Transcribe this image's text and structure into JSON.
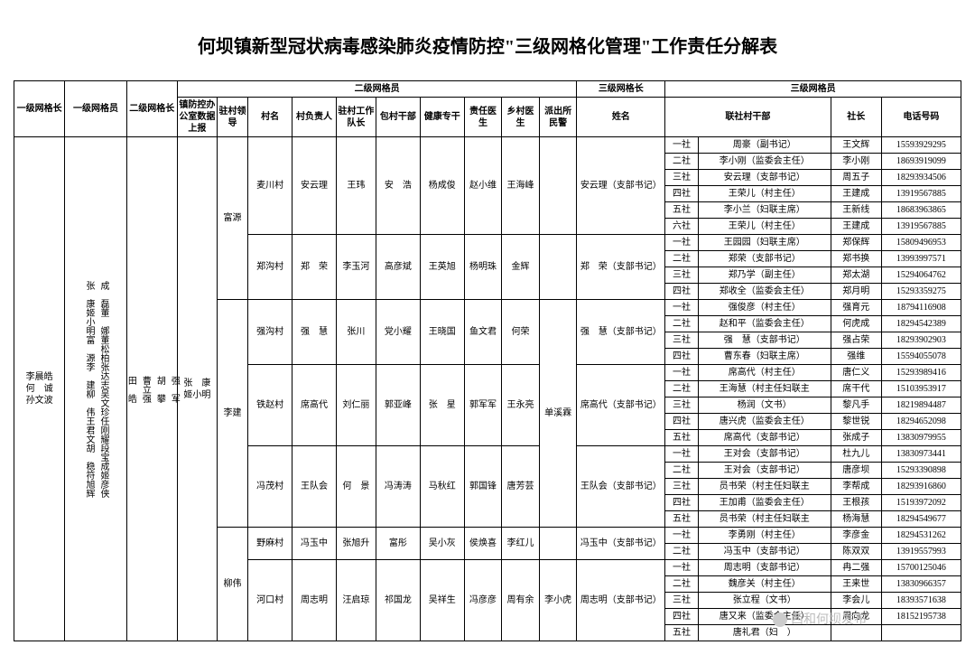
{
  "title": "何坝镇新型冠状病毒感染肺炎疫情防控\"三级网格化管理\"工作责任分解表",
  "headers": {
    "h1": "一级网格长",
    "h2": "一级网格员",
    "h3": "二级网格长",
    "h4": "二级网格员",
    "h5": "三级网格长",
    "h6": "三级网格员",
    "s_office": "镇防控办公室数据上报",
    "s_zc": "驻村领导",
    "s_cm": "村名",
    "s_cfz": "村负责人",
    "s_zcgz": "驻村工作队长",
    "s_bcgb": "包村干部",
    "s_jkzs": "健康专干",
    "s_zrys": "责任医生",
    "s_xcys": "乡村医生",
    "s_pcsmj": "派出所民警",
    "s_xm": "姓名",
    "s_lscgb": "联社村干部",
    "s_sz": "社长",
    "s_dh": "电话号码"
  },
  "lvl1_leader": "李晨皓\n何　诚\n孙文波",
  "lvl1_members": [
    "张　康",
    "姬小明",
    "富　源",
    "李　建",
    "柳　伟",
    "王君文",
    "胡　稳",
    "符旭辉",
    "成　磊",
    "董　娜",
    "董松柏",
    "张达志",
    "吴文珍",
    "任刚耀",
    "段宝成",
    "姬彦侠"
  ],
  "lvl2_leader": [
    "田　皓",
    "曹立强",
    "胡　攀",
    "强　军"
  ],
  "lvl2_team": "张　康\n姬小明",
  "groups": [
    {
      "zc": "富源",
      "villages": [
        {
          "cm": "麦川村",
          "cfz": "安云理",
          "zcgz": "王玮",
          "bcgb": "安　浩",
          "jkzs": "杨成俊",
          "zrys": "赵小维",
          "xcys": "王海峰",
          "pcsmj": "",
          "xm": "安云理（支部书记）",
          "rows": [
            {
              "s": "一社",
              "g": "周豪（副书记）",
              "z": "王文辉",
              "p": "15593929295"
            },
            {
              "s": "二社",
              "g": "李小刚（监委会主任）",
              "z": "李小刚",
              "p": "18693919099"
            },
            {
              "s": "三社",
              "g": "安云理（支部书记）",
              "z": "周五子",
              "p": "18293934506"
            },
            {
              "s": "四社",
              "g": "王荣儿（村主任）",
              "z": "王建成",
              "p": "13919567885"
            },
            {
              "s": "五社",
              "g": "李小兰（妇联主席）",
              "z": "王新线",
              "p": "18683963865"
            },
            {
              "s": "六社",
              "g": "王荣儿（村主任）",
              "z": "王建成",
              "p": "13919567885"
            }
          ]
        },
        {
          "cm": "郑沟村",
          "cfz": "郑　荣",
          "zcgz": "李玉河",
          "bcgb": "高彦斌",
          "jkzs": "王英旭",
          "zrys": "杨明珠",
          "xcys": "金辉",
          "pcsmj": "",
          "xm": "郑　荣（支部书记）",
          "rows": [
            {
              "s": "一社",
              "g": "王园园（妇联主席）",
              "z": "郑保辉",
              "p": "15809496953"
            },
            {
              "s": "二社",
              "g": "郑荣（支部书记）",
              "z": "郑书换",
              "p": "13993997571"
            },
            {
              "s": "三社",
              "g": "郑乃学（副主任）",
              "z": "郑太湖",
              "p": "15294064762"
            },
            {
              "s": "四社",
              "g": "郑收全（监委会主任）",
              "z": "郑月明",
              "p": "15293359275"
            }
          ]
        }
      ]
    },
    {
      "zc": "李建",
      "pcsmj": "单溪霖",
      "villages": [
        {
          "cm": "强沟村",
          "cfz": "强　慧",
          "zcgz": "张川",
          "bcgb": "党小耀",
          "jkzs": "王晓国",
          "zrys": "鱼文君",
          "xcys": "何荣",
          "xm": "强　慧（支部书记）",
          "rows": [
            {
              "s": "一社",
              "g": "强俊彦（村主任）",
              "z": "强育元",
              "p": "18794116908"
            },
            {
              "s": "二社",
              "g": "赵和平（监委会主任）",
              "z": "何虎成",
              "p": "18294542389"
            },
            {
              "s": "三社",
              "g": "强　慧（支部书记）",
              "z": "强占荣",
              "p": "18293902903"
            },
            {
              "s": "四社",
              "g": "曹东春（妇联主席）",
              "z": "强维",
              "p": "15594055078"
            }
          ]
        },
        {
          "cm": "铁赵村",
          "cfz": "席高代",
          "zcgz": "刘仁丽",
          "bcgb": "郭亚峰",
          "jkzs": "张　星",
          "zrys": "郭军军",
          "xcys": "王永亮",
          "xm": "席高代（支部书记）",
          "rows": [
            {
              "s": "一社",
              "g": "席高代（村主任）",
              "z": "唐仁义",
              "p": "15293989416"
            },
            {
              "s": "二社",
              "g": "王海慧（村主任妇联主",
              "z": "席干代",
              "p": "15103953917"
            },
            {
              "s": "三社",
              "g": "杨润（文书）",
              "z": "黎凡手",
              "p": "18219894487"
            },
            {
              "s": "四社",
              "g": "唐兴虎（监委会主任）",
              "z": "黎世锐",
              "p": "18294652098"
            },
            {
              "s": "五社",
              "g": "席高代（支部书记）",
              "z": "张成子",
              "p": "13830979955"
            }
          ]
        },
        {
          "cm": "冯茂村",
          "cfz": "王队会",
          "zcgz": "何　景",
          "bcgb": "冯涛涛",
          "jkzs": "马秋红",
          "zrys": "郭国锋",
          "xcys": "唐芳芸",
          "xm": "王队会（支部书记）",
          "rows": [
            {
              "s": "一社",
              "g": "王对会（支部书记）",
              "z": "杜九儿",
              "p": "13830973441"
            },
            {
              "s": "二社",
              "g": "王对会（支部书记）",
              "z": "唐彦坝",
              "p": "15293390898"
            },
            {
              "s": "三社",
              "g": "员书荣（村主任妇联主",
              "z": "李帮成",
              "p": "18293916860"
            },
            {
              "s": "四社",
              "g": "王加甫（监委会主任）",
              "z": "王根孩",
              "p": "15193972092"
            },
            {
              "s": "五社",
              "g": "员书荣（村主任妇联主",
              "z": "杨海慧",
              "p": "18294549677"
            }
          ]
        }
      ]
    },
    {
      "zc": "柳伟",
      "villages": [
        {
          "cm": "野麻村",
          "cfz": "冯玉中",
          "zcgz": "张旭升",
          "bcgb": "富彤",
          "jkzs": "吴小灰",
          "zrys": "侯焕喜",
          "xcys": "李红儿",
          "pcsmj": "",
          "xm": "冯玉中（支部书记）",
          "rows": [
            {
              "s": "一社",
              "g": "李勇刚（村主任）",
              "z": "李彦金",
              "p": "18294531262"
            },
            {
              "s": "二社",
              "g": "冯玉中（支部书记）",
              "z": "陈双双",
              "p": "13919557993"
            }
          ]
        },
        {
          "cm": "河口村",
          "cfz": "周志明",
          "zcgz": "汪启琼",
          "bcgb": "祁国龙",
          "jkzs": "吴祥生",
          "zrys": "冯彦彦",
          "xcys": "周有余",
          "pcsmj": "李小虎",
          "xm": "周志明（支部书记）",
          "rows": [
            {
              "s": "一社",
              "g": "周志明（支部书记）",
              "z": "冉二强",
              "p": "15700125046"
            },
            {
              "s": "二社",
              "g": "魏彦关（村主任）",
              "z": "王来世",
              "p": "13830966357"
            },
            {
              "s": "三社",
              "g": "张立程（文书）",
              "z": "李会儿",
              "p": "18393571638"
            },
            {
              "s": "四社",
              "g": "唐又来（监委会主任）",
              "z": "周向龙",
              "p": "18152195738"
            },
            {
              "s": "五社",
              "g": "唐礼君（妇　）",
              "z": "",
              "p": ""
            }
          ]
        }
      ]
    }
  ],
  "watermark": "西和何坝发布"
}
